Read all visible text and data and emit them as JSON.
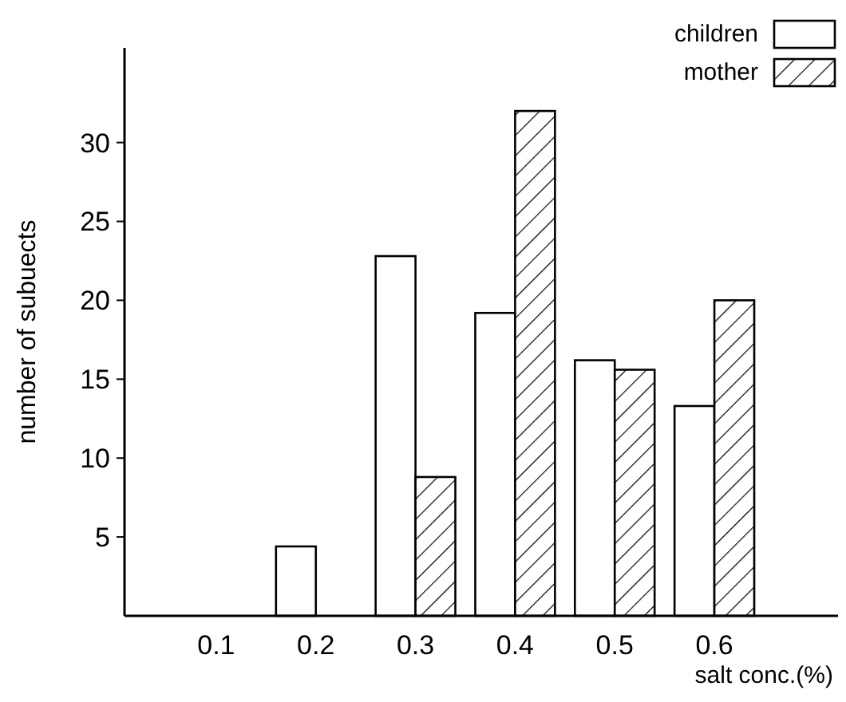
{
  "chart_data": {
    "type": "bar",
    "xlabel": "salt conc.(%)",
    "ylabel": "number of subuects",
    "categories": [
      "0.1",
      "0.2",
      "0.3",
      "0.4",
      "0.5",
      "0.6"
    ],
    "series": [
      {
        "name": "children",
        "color": "#ffffff",
        "values": [
          0,
          4.4,
          22.8,
          19.2,
          16.2,
          13.3
        ]
      },
      {
        "name": "mother",
        "color": "#000000",
        "values": [
          0,
          0,
          8.8,
          32,
          15.6,
          20
        ]
      }
    ],
    "ylim": [
      0,
      36
    ],
    "yticks": [
      5,
      10,
      15,
      20,
      25,
      30
    ],
    "grid": false,
    "legend": "top right"
  }
}
